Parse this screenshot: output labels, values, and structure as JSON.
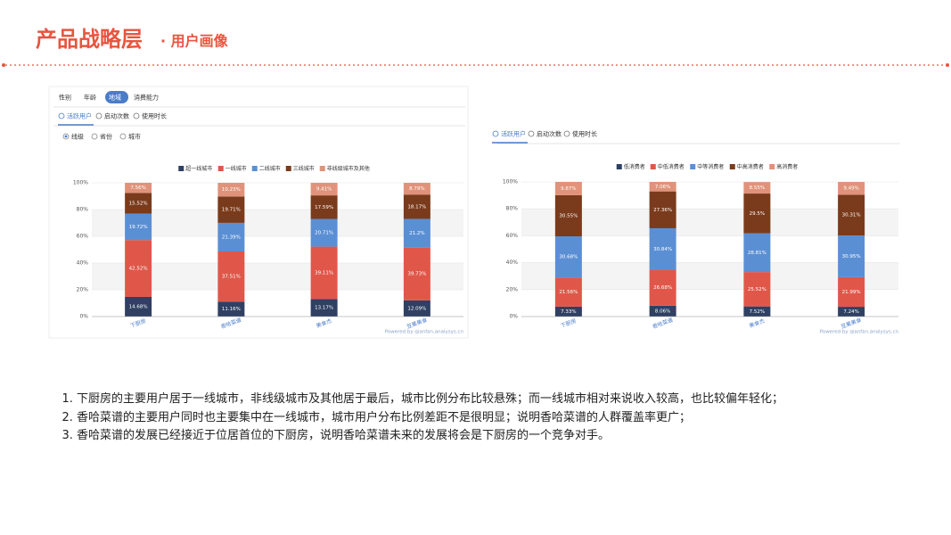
{
  "header": {
    "title": "产品战略层",
    "subtitle": "· 用户画像"
  },
  "panels": [
    {
      "tabs": [
        "性别",
        "年龄",
        "地域",
        "消费能力"
      ],
      "active_tab": 2,
      "subtabs": [
        "活跃用户",
        "启动次数",
        "使用时长"
      ],
      "options": [
        "线级",
        "省份",
        "城市"
      ]
    },
    {
      "subtabs": [
        "活跃用户",
        "启动次数",
        "使用时长"
      ]
    }
  ],
  "chart_data": [
    {
      "type": "stacked_bar",
      "source": "Powered by qianfan.analysys.cn",
      "categories": [
        "下厨房",
        "香哈菜谱",
        "美食杰",
        "豆果美食"
      ],
      "ylim": [
        0,
        100
      ],
      "yticks": [
        {
          "value": 0,
          "label": "0%"
        },
        {
          "value": 20,
          "label": "20%"
        },
        {
          "value": 40,
          "label": "40%"
        },
        {
          "value": 60,
          "label": "60%"
        },
        {
          "value": 80,
          "label": "80%"
        },
        {
          "value": 100,
          "label": "100%"
        }
      ],
      "grid": true,
      "series": [
        {
          "name": "超一线城市",
          "color": "#2f4063",
          "values": [
            14.68,
            11.16,
            13.17,
            12.09
          ],
          "value_labels": [
            "14.68%",
            "11.16%",
            "13.17%",
            "12.09%"
          ]
        },
        {
          "name": "一线城市",
          "color": "#e0574a",
          "values": [
            42.52,
            37.51,
            39.11,
            39.73
          ],
          "value_labels": [
            "42.52%",
            "37.51%",
            "39.11%",
            "39.73%"
          ]
        },
        {
          "name": "二线城市",
          "color": "#5b8fd4",
          "values": [
            19.72,
            21.39,
            20.71,
            21.2
          ],
          "value_labels": [
            "19.72%",
            "21.39%",
            "20.71%",
            "21.2%"
          ]
        },
        {
          "name": "三线城市",
          "color": "#7a3b1c",
          "values": [
            15.52,
            19.71,
            17.59,
            18.17
          ],
          "value_labels": [
            "15.52%",
            "19.71%",
            "17.59%",
            "18.17%"
          ]
        },
        {
          "name": "非线级城市及其他",
          "color": "#e0937a",
          "values": [
            7.56,
            10.23,
            9.41,
            8.79
          ],
          "value_labels": [
            "7.56%",
            "10.23%",
            "9.41%",
            "8.79%"
          ]
        }
      ]
    },
    {
      "type": "stacked_bar",
      "source": "Powered by qianfan.analysys.cn",
      "categories": [
        "下厨房",
        "香哈菜谱",
        "美食杰",
        "豆果美食"
      ],
      "ylim": [
        0,
        100
      ],
      "yticks": [
        {
          "value": 0,
          "label": "0%"
        },
        {
          "value": 20,
          "label": "20%"
        },
        {
          "value": 40,
          "label": "40%"
        },
        {
          "value": 60,
          "label": "60%"
        },
        {
          "value": 80,
          "label": "80%"
        },
        {
          "value": 100,
          "label": "100%"
        }
      ],
      "grid": true,
      "series": [
        {
          "name": "低消费者",
          "color": "#2f4063",
          "values": [
            7.33,
            8.06,
            7.52,
            7.24
          ],
          "value_labels": [
            "7.33%",
            "8.06%",
            "7.52%",
            "7.24%"
          ]
        },
        {
          "name": "中低消费者",
          "color": "#e0574a",
          "values": [
            21.56,
            26.68,
            25.52,
            21.99
          ],
          "value_labels": [
            "21.56%",
            "26.68%",
            "25.52%",
            "21.99%"
          ]
        },
        {
          "name": "中等消费者",
          "color": "#5b8fd4",
          "values": [
            30.68,
            30.84,
            28.81,
            30.95
          ],
          "value_labels": [
            "30.68%",
            "30.84%",
            "28.81%",
            "30.95%"
          ]
        },
        {
          "name": "中高消费者",
          "color": "#7a3b1c",
          "values": [
            30.55,
            27.36,
            29.5,
            30.31
          ],
          "value_labels": [
            "30.55%",
            "27.36%",
            "29.5%",
            "30.31%"
          ]
        },
        {
          "name": "高消费者",
          "color": "#e0937a",
          "values": [
            9.87,
            7.06,
            8.55,
            9.49
          ],
          "value_labels": [
            "9.87%",
            "7.06%",
            "8.55%",
            "9.49%"
          ]
        }
      ]
    }
  ],
  "notes": [
    "下厨房的主要用户居于一线城市，非线级城市及其他居于最后，城市比例分布比较悬殊；而一线城市相对来说收入较高，也比较偏年轻化；",
    "香哈菜谱的主要用户同时也主要集中在一线城市，城市用户分布比例差距不是很明显；说明香哈菜谱的人群覆盖率更广；",
    "香哈菜谱的发展已经接近于位居首位的下厨房，说明香哈菜谱未来的发展将会是下厨房的一个竞争对手。"
  ]
}
